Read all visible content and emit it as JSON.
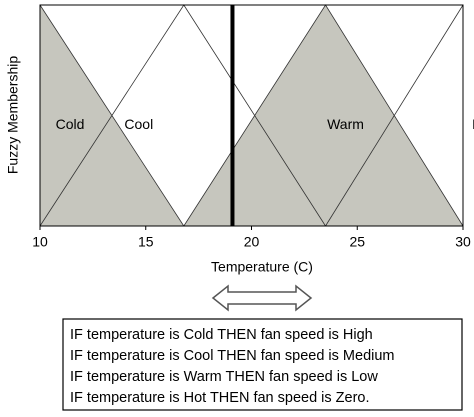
{
  "chart_data": {
    "type": "membership",
    "y_label": "Fuzzy Membership",
    "x_label": "Temperature (C)",
    "xlim": [
      10,
      30
    ],
    "xticks": [
      10,
      15,
      20,
      25,
      30
    ],
    "ylim": [
      0,
      1
    ],
    "marker_x": 19.1,
    "series": [
      {
        "name": "Cold",
        "color": "#c6c6be",
        "filled": true,
        "x": [
          10,
          16.8
        ],
        "values": [
          1,
          0
        ]
      },
      {
        "name": "Cool",
        "color": "#ffffff",
        "filled": false,
        "x": [
          10,
          16.8,
          23.5
        ],
        "values": [
          0,
          1,
          0
        ]
      },
      {
        "name": "Warm",
        "color": "#c6c6be",
        "filled": true,
        "x": [
          16.8,
          23.5,
          30
        ],
        "values": [
          0,
          1,
          0
        ]
      },
      {
        "name": "Hot",
        "color": "#ffffff",
        "filled": false,
        "x": [
          23.5,
          30
        ],
        "values": [
          0,
          1
        ]
      }
    ]
  },
  "rules": [
    "IF temperature is Cold THEN fan speed is High",
    "IF temperature is Cool THEN fan speed is Medium",
    "IF temperature is Warm THEN fan speed is Low",
    "IF temperature is Hot THEN fan speed is Zero."
  ]
}
